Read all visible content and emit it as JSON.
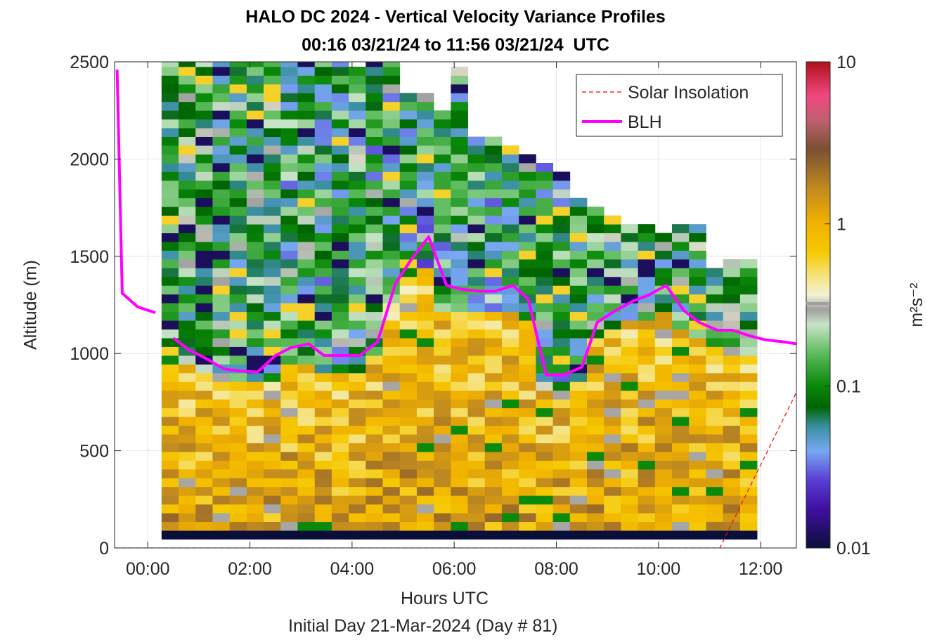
{
  "chart_data": {
    "type": "heatmap",
    "title": "HALO DC 2024 - Vertical Velocity Variance Profiles",
    "subtitle": "00:16 03/21/24 to 11:56 03/21/24  UTC",
    "xlabel": "Hours UTC",
    "xlabel2": "Initial Day 21-Mar-2024 (Day # 81)",
    "ylabel": "Altitude (m)",
    "x_ticks": [
      "00:00",
      "02:00",
      "04:00",
      "06:00",
      "08:00",
      "10:00",
      "12:00"
    ],
    "x_tick_values": [
      0,
      2,
      4,
      6,
      8,
      10,
      12
    ],
    "y_ticks": [
      "0",
      "500",
      "1000",
      "1500",
      "2000",
      "2500"
    ],
    "y_tick_values": [
      0,
      500,
      1000,
      1500,
      2000,
      2500
    ],
    "xlim": [
      -0.65,
      12.7
    ],
    "ylim": [
      0,
      2500
    ],
    "grid": true,
    "legend_position": "top-right",
    "colorbar": {
      "label": "m²s⁻²",
      "scale": "log",
      "range": [
        0.01,
        10
      ],
      "ticks": [
        "0.01",
        "0.1",
        "1",
        "10"
      ],
      "tick_values": [
        0.01,
        0.1,
        1,
        10
      ]
    },
    "series": [
      {
        "name": "Solar Insolation",
        "style": "dashed",
        "color": "#ff0000",
        "x": [
          -0.65,
          11.2,
          12.7
        ],
        "y": [
          0,
          0,
          800
        ]
      },
      {
        "name": "BLH",
        "style": "solid",
        "color": "#ff00ff",
        "segments": [
          {
            "x": [
              -0.6,
              -0.5,
              -0.2,
              0.15
            ],
            "y": [
              2460,
              1310,
              1240,
              1210
            ]
          },
          {
            "x": [
              0.5,
              0.8,
              1.1,
              1.5,
              1.8,
              2.15,
              2.5,
              2.8,
              3.15,
              3.45,
              3.8,
              4.15,
              4.5,
              4.85,
              5.15,
              5.5,
              5.85,
              6.15,
              6.5,
              6.8,
              7.15,
              7.45,
              7.8,
              8.15,
              8.5,
              8.8,
              9.15,
              9.5,
              9.8,
              10.15,
              10.5,
              10.8,
              11.15,
              11.45,
              11.8,
              12.1,
              12.45,
              12.7
            ],
            "y": [
              1080,
              1020,
              980,
              920,
              910,
              905,
              990,
              1030,
              1050,
              990,
              990,
              990,
              1060,
              1360,
              1480,
              1600,
              1350,
              1330,
              1320,
              1320,
              1350,
              1280,
              890,
              890,
              930,
              1160,
              1220,
              1270,
              1300,
              1350,
              1220,
              1160,
              1120,
              1120,
              1090,
              1070,
              1060,
              1050
            ]
          }
        ]
      }
    ],
    "heatmap": {
      "description_of_values": "vertical velocity variance, m2 s-2, log colour scale 0.01 to 10",
      "time_start_hours": 0.27,
      "time_end_hours": 11.93,
      "num_time_bins": 35,
      "altitude_bottom_m": 90,
      "altitude_bin_m": 45,
      "bottom_bin_value": 0.01,
      "top_altitude_profile_m": [
        2500,
        2500,
        2500,
        2500,
        2500,
        2500,
        2500,
        2500,
        2500,
        2500,
        2500,
        2450,
        2500,
        2500,
        2300,
        2300,
        2250,
        2450,
        2100,
        2100,
        2050,
        2000,
        1950,
        1900,
        1800,
        1750,
        1700,
        1650,
        1650,
        1600,
        1650,
        1650,
        1400,
        1450,
        1450
      ],
      "blh_rough_profile_m": [
        1080,
        1020,
        980,
        920,
        910,
        905,
        990,
        1030,
        1050,
        990,
        990,
        990,
        1060,
        1360,
        1480,
        1600,
        1350,
        1330,
        1320,
        1320,
        1350,
        1280,
        890,
        890,
        930,
        1160,
        1220,
        1270,
        1300,
        1350,
        1220,
        1160,
        1120,
        1120,
        1090
      ]
    }
  }
}
